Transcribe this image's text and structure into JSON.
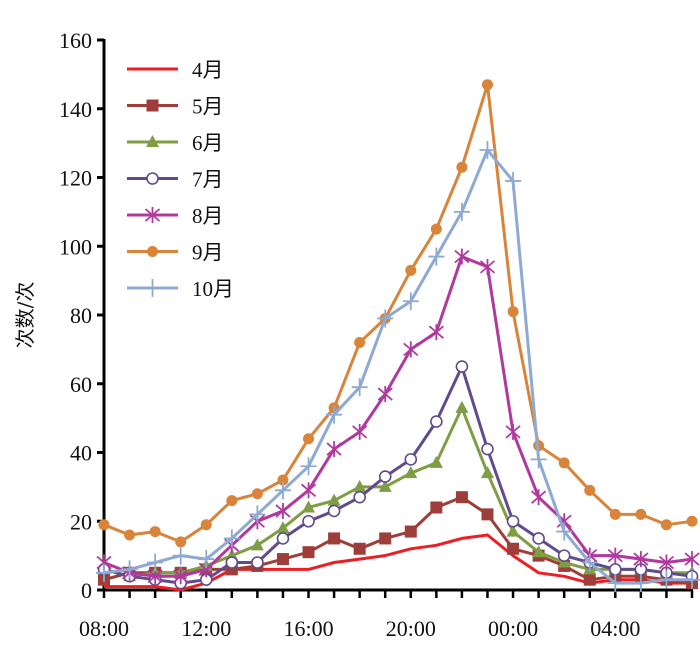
{
  "chart_data": {
    "type": "line",
    "title": "",
    "xlabel": "",
    "ylabel": "次数/次",
    "ylim": [
      0,
      160
    ],
    "yticks": [
      0,
      20,
      40,
      60,
      80,
      100,
      120,
      140,
      160
    ],
    "ytick_labels": [
      "0",
      "20",
      "40",
      "60",
      "80",
      "100",
      "120",
      "140",
      "160"
    ],
    "x": [
      "08:00",
      "09:00",
      "10:00",
      "11:00",
      "12:00",
      "13:00",
      "14:00",
      "15:00",
      "16:00",
      "17:00",
      "18:00",
      "19:00",
      "20:00",
      "21:00",
      "22:00",
      "23:00",
      "00:00",
      "01:00",
      "02:00",
      "03:00",
      "04:00",
      "05:00",
      "06:00",
      "07:00"
    ],
    "xtick_labels": [
      {
        "index": 0,
        "label": "08:00"
      },
      {
        "index": 4,
        "label": "12:00"
      },
      {
        "index": 8,
        "label": "16:00"
      },
      {
        "index": 12,
        "label": "20:00"
      },
      {
        "index": 16,
        "label": "00:00"
      },
      {
        "index": 20,
        "label": "04:00"
      }
    ],
    "grid": false,
    "legend_position": "top-left",
    "series": [
      {
        "name": "4月",
        "color": "#ee1d23",
        "marker": "none",
        "values": [
          1,
          1,
          1,
          0,
          2,
          6,
          6,
          6,
          6,
          8,
          9,
          10,
          12,
          13,
          15,
          16,
          10,
          5,
          4,
          2,
          3,
          3,
          2,
          2
        ]
      },
      {
        "name": "5月",
        "color": "#9e3e3b",
        "marker": "square",
        "values": [
          3,
          5,
          5,
          5,
          6,
          6,
          7,
          9,
          11,
          15,
          12,
          15,
          17,
          24,
          27,
          22,
          12,
          10,
          7,
          3,
          4,
          4,
          3,
          2
        ]
      },
      {
        "name": "6月",
        "color": "#7f9d45",
        "marker": "triangle",
        "values": [
          6,
          4,
          5,
          5,
          7,
          10,
          13,
          18,
          24,
          26,
          30,
          30,
          34,
          37,
          53,
          34,
          17,
          11,
          8,
          6,
          6,
          6,
          5,
          5
        ]
      },
      {
        "name": "7月",
        "color": "#604c8d",
        "marker": "circle-open",
        "values": [
          6,
          4,
          3,
          2,
          3,
          8,
          8,
          15,
          20,
          23,
          27,
          33,
          38,
          49,
          65,
          41,
          20,
          15,
          10,
          8,
          6,
          6,
          5,
          4
        ]
      },
      {
        "name": "8月",
        "color": "#b0399e",
        "marker": "star",
        "values": [
          8,
          5,
          4,
          4,
          6,
          13,
          20,
          23,
          29,
          41,
          46,
          57,
          70,
          75,
          97,
          94,
          46,
          27,
          20,
          10,
          10,
          9,
          8,
          9
        ]
      },
      {
        "name": "9月",
        "color": "#d9843b",
        "marker": "dot",
        "values": [
          19,
          16,
          17,
          14,
          19,
          26,
          28,
          32,
          44,
          53,
          72,
          79,
          93,
          105,
          123,
          147,
          81,
          42,
          37,
          29,
          22,
          22,
          19,
          20
        ]
      },
      {
        "name": "10月",
        "color": "#8eaad2",
        "marker": "plus",
        "values": [
          5,
          6,
          8,
          10,
          9,
          15,
          22,
          29,
          36,
          51,
          59,
          79,
          84,
          97,
          110,
          128,
          119,
          38,
          17,
          8,
          2,
          2,
          3,
          3
        ]
      }
    ]
  }
}
